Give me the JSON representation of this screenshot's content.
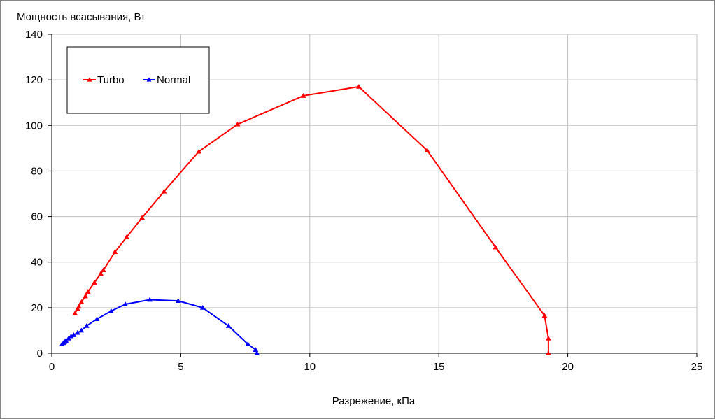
{
  "chart_data": {
    "type": "scatter",
    "ylabel": "Мощность всасывания, Вт",
    "xlabel": "Разрежение, кПа",
    "xlim": [
      0,
      25
    ],
    "ylim": [
      0,
      140
    ],
    "xticks": [
      0,
      5,
      10,
      15,
      20,
      25
    ],
    "yticks": [
      0,
      20,
      40,
      60,
      80,
      100,
      120,
      140
    ],
    "grid": true,
    "legend_position": "top-left",
    "series": [
      {
        "name": "Turbo",
        "color": "#ff0000",
        "marker": "triangle",
        "x": [
          0.9,
          1.0,
          1.05,
          1.15,
          1.3,
          1.4,
          1.65,
          1.9,
          2.0,
          2.45,
          2.9,
          3.5,
          4.35,
          5.7,
          7.2,
          9.75,
          11.9,
          14.55,
          17.2,
          19.1,
          19.25,
          19.25
        ],
        "y": [
          17.5,
          19.5,
          20.5,
          22.5,
          25,
          27,
          31,
          35,
          36.5,
          44.5,
          51,
          59.5,
          71,
          88.5,
          100.5,
          113,
          117,
          89,
          46.5,
          16.5,
          6.5,
          0
        ]
      },
      {
        "name": "Normal",
        "color": "#0000ff",
        "marker": "triangle",
        "x": [
          0.4,
          0.45,
          0.5,
          0.55,
          0.65,
          0.75,
          0.85,
          1.0,
          1.15,
          1.35,
          1.75,
          2.3,
          2.85,
          3.8,
          4.9,
          5.85,
          6.85,
          7.6,
          7.9,
          7.95
        ],
        "y": [
          4,
          4.5,
          5,
          5.5,
          6.5,
          7.5,
          8,
          9,
          10,
          12,
          15,
          18.5,
          21.5,
          23.5,
          23,
          20,
          12,
          4,
          1.5,
          0
        ]
      }
    ]
  }
}
